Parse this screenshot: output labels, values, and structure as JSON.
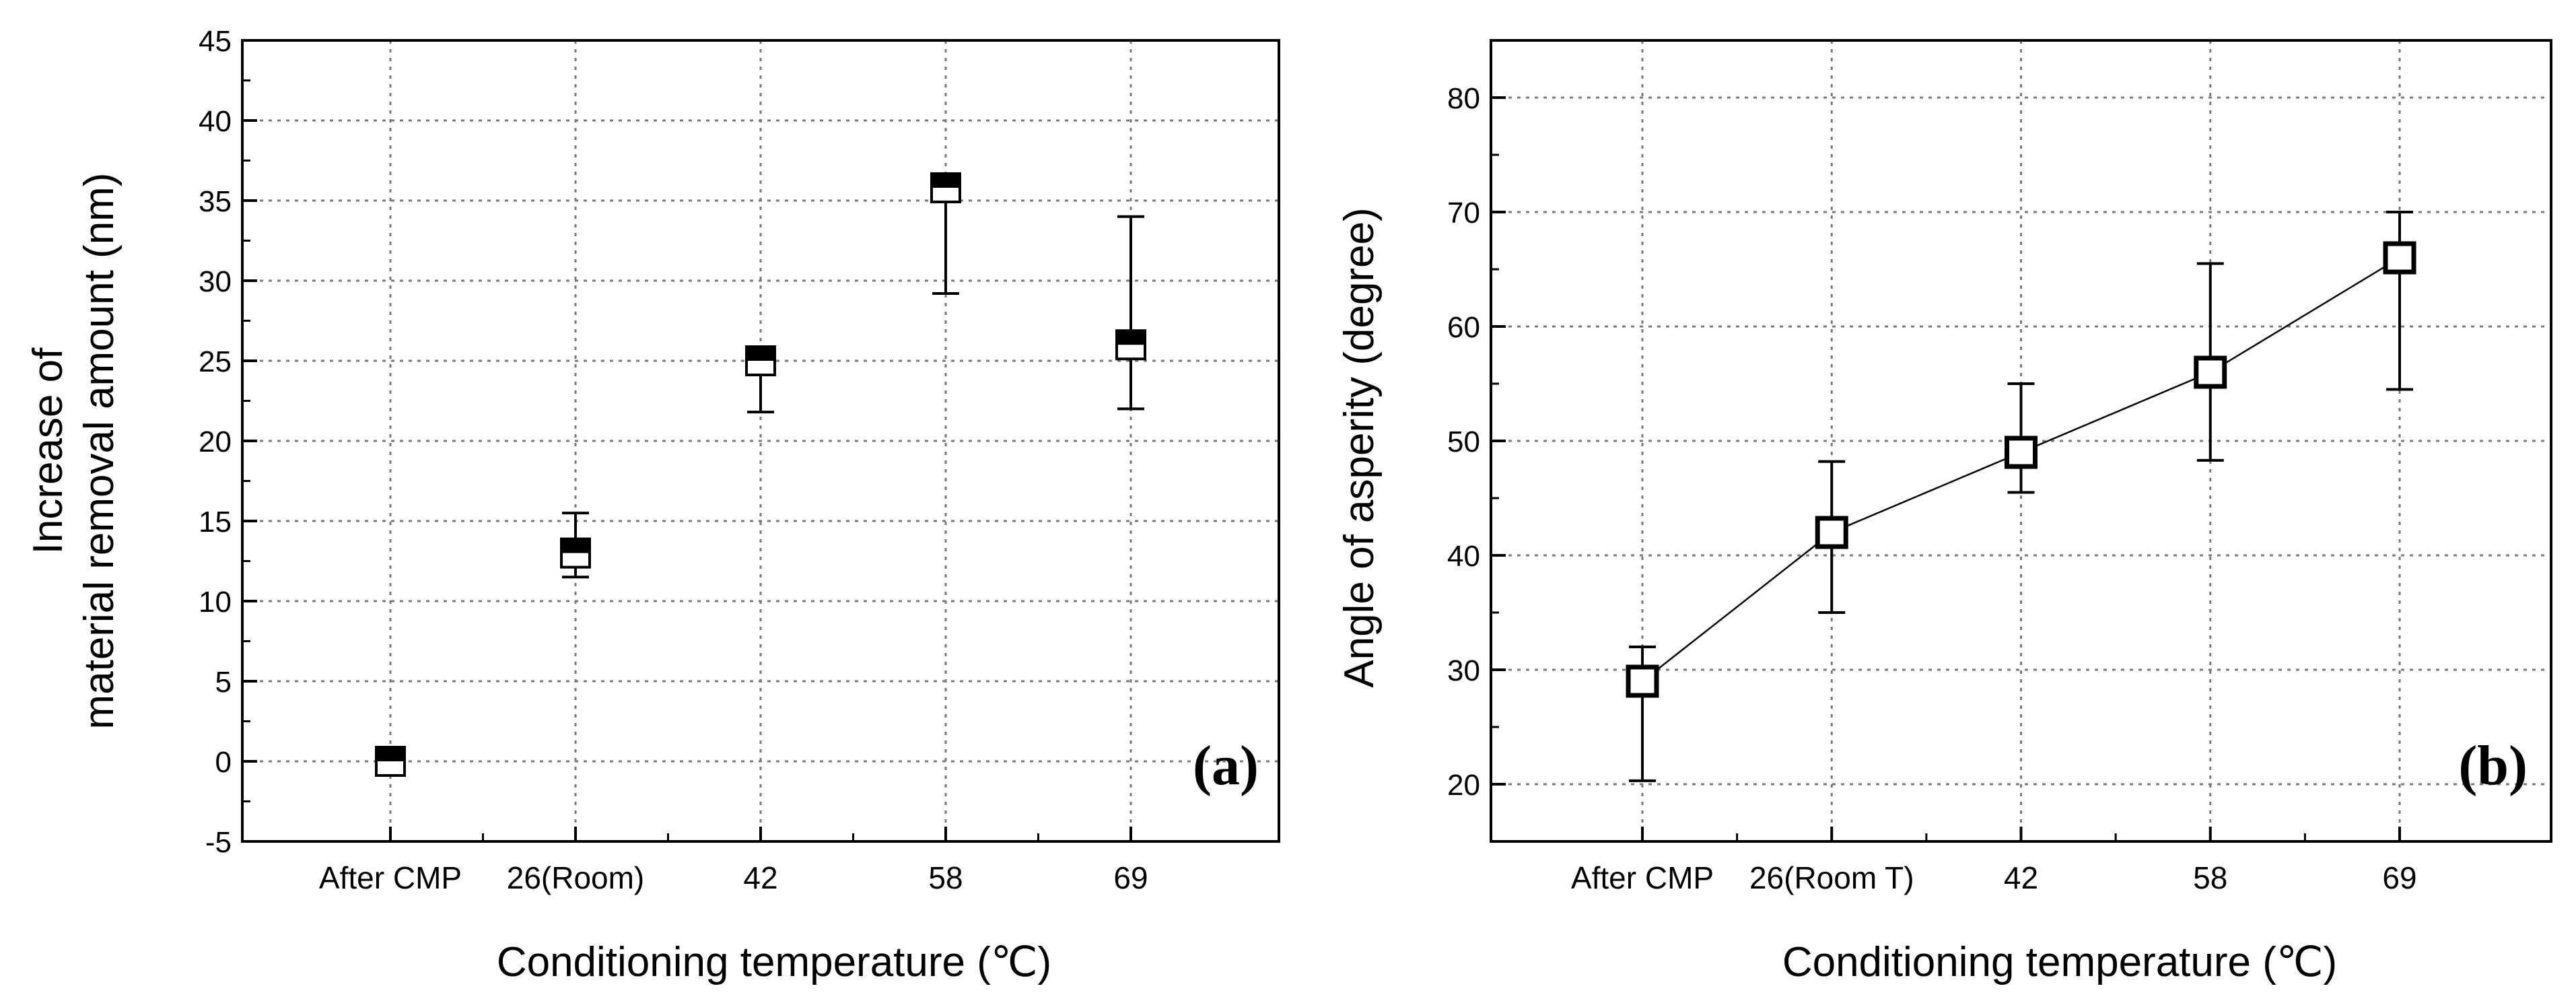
{
  "figure": {
    "colors": {
      "axis": "#000000",
      "grid": "#7a7a7a",
      "marker_fill": "#ffffff",
      "marker_stroke": "#000000",
      "background": "#ffffff"
    }
  },
  "chart_data": [
    {
      "id": "a",
      "type": "scatter",
      "panel_label": "(a)",
      "xlabel": "Conditioning temperature (℃)",
      "ylabel": [
        "Increase of",
        "material removal amount (nm)"
      ],
      "categories": [
        "After CMP",
        "26(Room)",
        "42",
        "58",
        "69"
      ],
      "ylim": [
        -5,
        45
      ],
      "yticks": [
        -5,
        0,
        5,
        10,
        15,
        20,
        25,
        30,
        35,
        40,
        45
      ],
      "grid": true,
      "marker": "half-filled-square",
      "connect_line": false,
      "series": [
        {
          "name": "material removal amount",
          "values": [
            0,
            13,
            25,
            35.8,
            26
          ],
          "err_low": [
            0,
            11.5,
            21.8,
            29.2,
            22
          ],
          "err_high": [
            0,
            15.5,
            25,
            35.8,
            34
          ]
        }
      ]
    },
    {
      "id": "b",
      "type": "line",
      "panel_label": "(b)",
      "xlabel": "Conditioning temperature (℃)",
      "ylabel": [
        "Angle of asperity (degree)"
      ],
      "categories": [
        "After CMP",
        "26(Room T)",
        "42",
        "58",
        "69"
      ],
      "ylim": [
        15,
        85
      ],
      "yticks": [
        20,
        30,
        40,
        50,
        60,
        70,
        80
      ],
      "grid": true,
      "marker": "open-square",
      "connect_line": true,
      "series": [
        {
          "name": "angle of asperity",
          "values": [
            29,
            42,
            49,
            56,
            66
          ],
          "err_low": [
            20.3,
            35,
            45.5,
            48.3,
            54.5
          ],
          "err_high": [
            32,
            48.2,
            55,
            65.5,
            70
          ]
        }
      ]
    }
  ]
}
